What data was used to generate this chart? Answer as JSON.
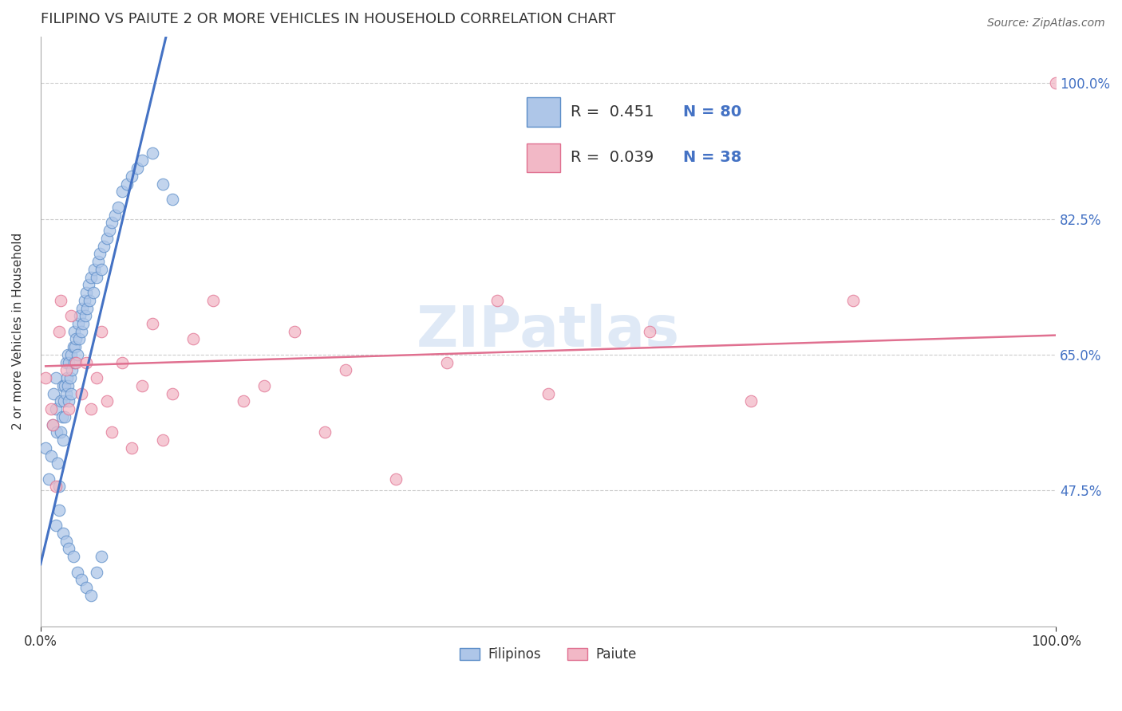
{
  "title": "FILIPINO VS PAIUTE 2 OR MORE VEHICLES IN HOUSEHOLD CORRELATION CHART",
  "source": "Source: ZipAtlas.com",
  "ylabel": "2 or more Vehicles in Household",
  "ytick_labels": [
    "47.5%",
    "65.0%",
    "82.5%",
    "100.0%"
  ],
  "ytick_values": [
    0.475,
    0.65,
    0.825,
    1.0
  ],
  "xlim": [
    0.0,
    1.0
  ],
  "ylim": [
    0.3,
    1.06
  ],
  "filipino_color": "#aec6e8",
  "paiute_color": "#f2b8c6",
  "filipino_edge_color": "#5b8dc8",
  "paiute_edge_color": "#e07090",
  "filipino_line_color": "#4472c4",
  "paiute_line_color": "#e07090",
  "watermark": "ZIPatlas",
  "filipino_x": [
    0.005,
    0.008,
    0.01,
    0.012,
    0.013,
    0.015,
    0.015,
    0.016,
    0.017,
    0.018,
    0.02,
    0.02,
    0.021,
    0.022,
    0.022,
    0.023,
    0.024,
    0.024,
    0.025,
    0.025,
    0.026,
    0.027,
    0.027,
    0.028,
    0.028,
    0.029,
    0.03,
    0.03,
    0.031,
    0.032,
    0.033,
    0.033,
    0.034,
    0.035,
    0.036,
    0.037,
    0.038,
    0.039,
    0.04,
    0.041,
    0.042,
    0.043,
    0.044,
    0.045,
    0.046,
    0.047,
    0.048,
    0.05,
    0.052,
    0.053,
    0.055,
    0.057,
    0.058,
    0.06,
    0.062,
    0.065,
    0.068,
    0.07,
    0.073,
    0.076,
    0.08,
    0.085,
    0.09,
    0.095,
    0.1,
    0.11,
    0.12,
    0.13,
    0.015,
    0.018,
    0.022,
    0.025,
    0.028,
    0.032,
    0.036,
    0.04,
    0.045,
    0.05,
    0.055,
    0.06
  ],
  "filipino_y": [
    0.53,
    0.49,
    0.52,
    0.56,
    0.6,
    0.62,
    0.58,
    0.55,
    0.51,
    0.48,
    0.55,
    0.59,
    0.57,
    0.54,
    0.61,
    0.59,
    0.57,
    0.61,
    0.64,
    0.6,
    0.62,
    0.65,
    0.61,
    0.59,
    0.64,
    0.62,
    0.6,
    0.65,
    0.63,
    0.66,
    0.64,
    0.68,
    0.66,
    0.67,
    0.65,
    0.69,
    0.67,
    0.7,
    0.68,
    0.71,
    0.69,
    0.72,
    0.7,
    0.73,
    0.71,
    0.74,
    0.72,
    0.75,
    0.73,
    0.76,
    0.75,
    0.77,
    0.78,
    0.76,
    0.79,
    0.8,
    0.81,
    0.82,
    0.83,
    0.84,
    0.86,
    0.87,
    0.88,
    0.89,
    0.9,
    0.91,
    0.87,
    0.85,
    0.43,
    0.45,
    0.42,
    0.41,
    0.4,
    0.39,
    0.37,
    0.36,
    0.35,
    0.34,
    0.37,
    0.39
  ],
  "paiute_x": [
    0.005,
    0.01,
    0.012,
    0.015,
    0.018,
    0.02,
    0.025,
    0.028,
    0.03,
    0.035,
    0.04,
    0.045,
    0.05,
    0.055,
    0.06,
    0.065,
    0.07,
    0.08,
    0.09,
    0.1,
    0.11,
    0.12,
    0.13,
    0.15,
    0.17,
    0.2,
    0.22,
    0.25,
    0.28,
    0.3,
    0.35,
    0.4,
    0.45,
    0.5,
    0.6,
    0.7,
    0.8,
    1.0
  ],
  "paiute_y": [
    0.62,
    0.58,
    0.56,
    0.48,
    0.68,
    0.72,
    0.63,
    0.58,
    0.7,
    0.64,
    0.6,
    0.64,
    0.58,
    0.62,
    0.68,
    0.59,
    0.55,
    0.64,
    0.53,
    0.61,
    0.69,
    0.54,
    0.6,
    0.67,
    0.72,
    0.59,
    0.61,
    0.68,
    0.55,
    0.63,
    0.49,
    0.64,
    0.72,
    0.6,
    0.68,
    0.59,
    0.72,
    1.0
  ]
}
